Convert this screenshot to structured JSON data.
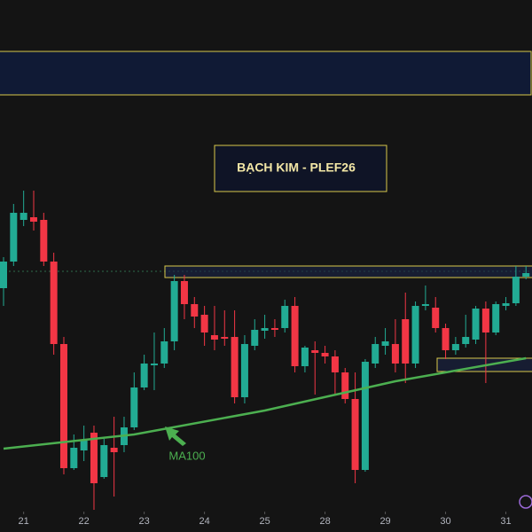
{
  "chart_data": {
    "type": "candlestick",
    "title": "BẠCH KIM - PLEF26",
    "x": [
      0,
      1,
      2,
      3,
      4,
      5,
      6,
      7,
      8,
      9,
      10,
      11,
      12,
      13,
      14,
      15,
      16,
      17,
      18,
      19,
      20,
      21,
      22,
      23,
      24,
      25,
      26,
      27,
      28,
      29,
      30,
      31,
      32,
      33,
      34,
      35,
      36,
      37,
      38,
      39,
      40,
      41,
      42,
      43,
      44,
      45,
      46,
      47,
      48,
      49,
      50,
      51,
      52
    ],
    "open": [
      275,
      305,
      352,
      355,
      352,
      305,
      212,
      72,
      92,
      112,
      62,
      95,
      98,
      118,
      163,
      188,
      190,
      215,
      283,
      257,
      245,
      222,
      220,
      220,
      152,
      210,
      227,
      230,
      230,
      255,
      187,
      205,
      202,
      198,
      180,
      150,
      70,
      190,
      210,
      212,
      240,
      190,
      255,
      253,
      230,
      205,
      212,
      217,
      252,
      225,
      255,
      258,
      288
    ],
    "high": [
      310,
      370,
      385,
      385,
      360,
      315,
      220,
      110,
      120,
      120,
      105,
      130,
      130,
      180,
      200,
      225,
      230,
      290,
      290,
      265,
      255,
      255,
      250,
      250,
      222,
      240,
      245,
      240,
      262,
      265,
      210,
      215,
      210,
      205,
      185,
      180,
      195,
      220,
      230,
      240,
      270,
      260,
      278,
      265,
      235,
      220,
      245,
      255,
      260,
      260,
      265,
      300,
      300
    ],
    "low": [
      255,
      300,
      345,
      340,
      300,
      200,
      65,
      70,
      80,
      25,
      60,
      40,
      90,
      115,
      160,
      160,
      185,
      205,
      240,
      230,
      210,
      205,
      210,
      145,
      145,
      205,
      218,
      220,
      225,
      180,
      180,
      155,
      190,
      155,
      145,
      55,
      68,
      185,
      200,
      180,
      168,
      185,
      250,
      225,
      195,
      200,
      208,
      212,
      168,
      222,
      250,
      255,
      285
    ],
    "close": [
      305,
      360,
      360,
      350,
      305,
      212,
      72,
      95,
      103,
      55,
      98,
      90,
      118,
      163,
      190,
      190,
      215,
      283,
      257,
      243,
      225,
      217,
      218,
      152,
      212,
      228,
      230,
      228,
      255,
      187,
      208,
      202,
      198,
      180,
      150,
      70,
      192,
      212,
      215,
      190,
      190,
      255,
      257,
      230,
      205,
      212,
      220,
      252,
      225,
      257,
      258,
      288,
      292
    ],
    "up_color": "#22ab94",
    "down_color": "#f23645",
    "ma": {
      "name": "MA100",
      "color": "#4caf50",
      "x": [
        0,
        13,
        26,
        39,
        52
      ],
      "values": [
        94,
        110,
        137,
        170,
        196
      ]
    },
    "annotation": "MA100",
    "xlim": [
      -0.353,
      52.6
    ],
    "ylim": [
      0,
      600
    ],
    "xticks": [
      {
        "value": 2,
        "label": "21"
      },
      {
        "value": 8,
        "label": "22"
      },
      {
        "value": 14,
        "label": "23"
      },
      {
        "value": 20,
        "label": "24"
      },
      {
        "value": 26,
        "label": "25"
      },
      {
        "value": 32,
        "label": "28"
      },
      {
        "value": 38,
        "label": "29"
      },
      {
        "value": 44,
        "label": "30"
      },
      {
        "value": 50,
        "label": "31"
      }
    ]
  }
}
